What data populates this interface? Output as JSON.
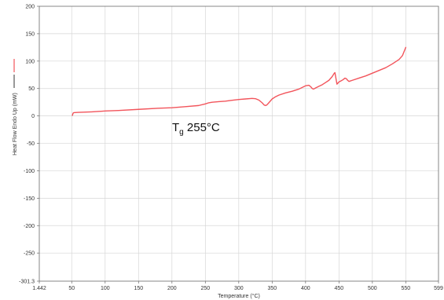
{
  "chart_data": {
    "type": "line",
    "title": "",
    "xlabel": "Temperature (°C)",
    "ylabel": "Heat Flow Endo Up (mW)",
    "xlim": [
      1.442,
      599
    ],
    "ylim": [
      -301.3,
      200
    ],
    "grid": true,
    "x_ticks": [
      "1.442",
      "50",
      "100",
      "150",
      "200",
      "250",
      "300",
      "350",
      "400",
      "450",
      "500",
      "550",
      "599"
    ],
    "y_ticks": [
      "200",
      "150",
      "100",
      "50",
      "0",
      "-50",
      "-100",
      "-150",
      "-200",
      "-250",
      "-301.3"
    ],
    "annotation": {
      "main": "T",
      "sub": "g",
      "rest": " 255°C"
    },
    "series": [
      {
        "color": "#f2545b",
        "x": [
          51,
          52,
          53,
          60,
          80,
          100,
          120,
          150,
          180,
          200,
          220,
          240,
          250,
          255,
          260,
          270,
          280,
          290,
          300,
          310,
          320,
          325,
          330,
          335,
          338,
          340,
          342,
          345,
          350,
          355,
          360,
          370,
          380,
          390,
          400,
          405,
          408,
          410,
          412,
          415,
          420,
          425,
          430,
          435,
          440,
          443,
          444,
          445,
          447,
          450,
          453,
          456,
          459,
          461,
          463,
          465,
          470,
          480,
          490,
          500,
          510,
          520,
          530,
          540,
          545,
          550
        ],
        "y": [
          1,
          5,
          6,
          6.5,
          7.5,
          9,
          10,
          12,
          14,
          15,
          17,
          19,
          22,
          24,
          25,
          26,
          27,
          28.5,
          30,
          31,
          32,
          31.5,
          29,
          24,
          20,
          19,
          20,
          24,
          31,
          35,
          38,
          42,
          45,
          49,
          55,
          56,
          53,
          50,
          49,
          51,
          54,
          57,
          61,
          65,
          72,
          78,
          79,
          72,
          58,
          62,
          64,
          66,
          69,
          68,
          65,
          63,
          65,
          69,
          73,
          78,
          83,
          88,
          95,
          103,
          110,
          125
        ]
      }
    ]
  }
}
